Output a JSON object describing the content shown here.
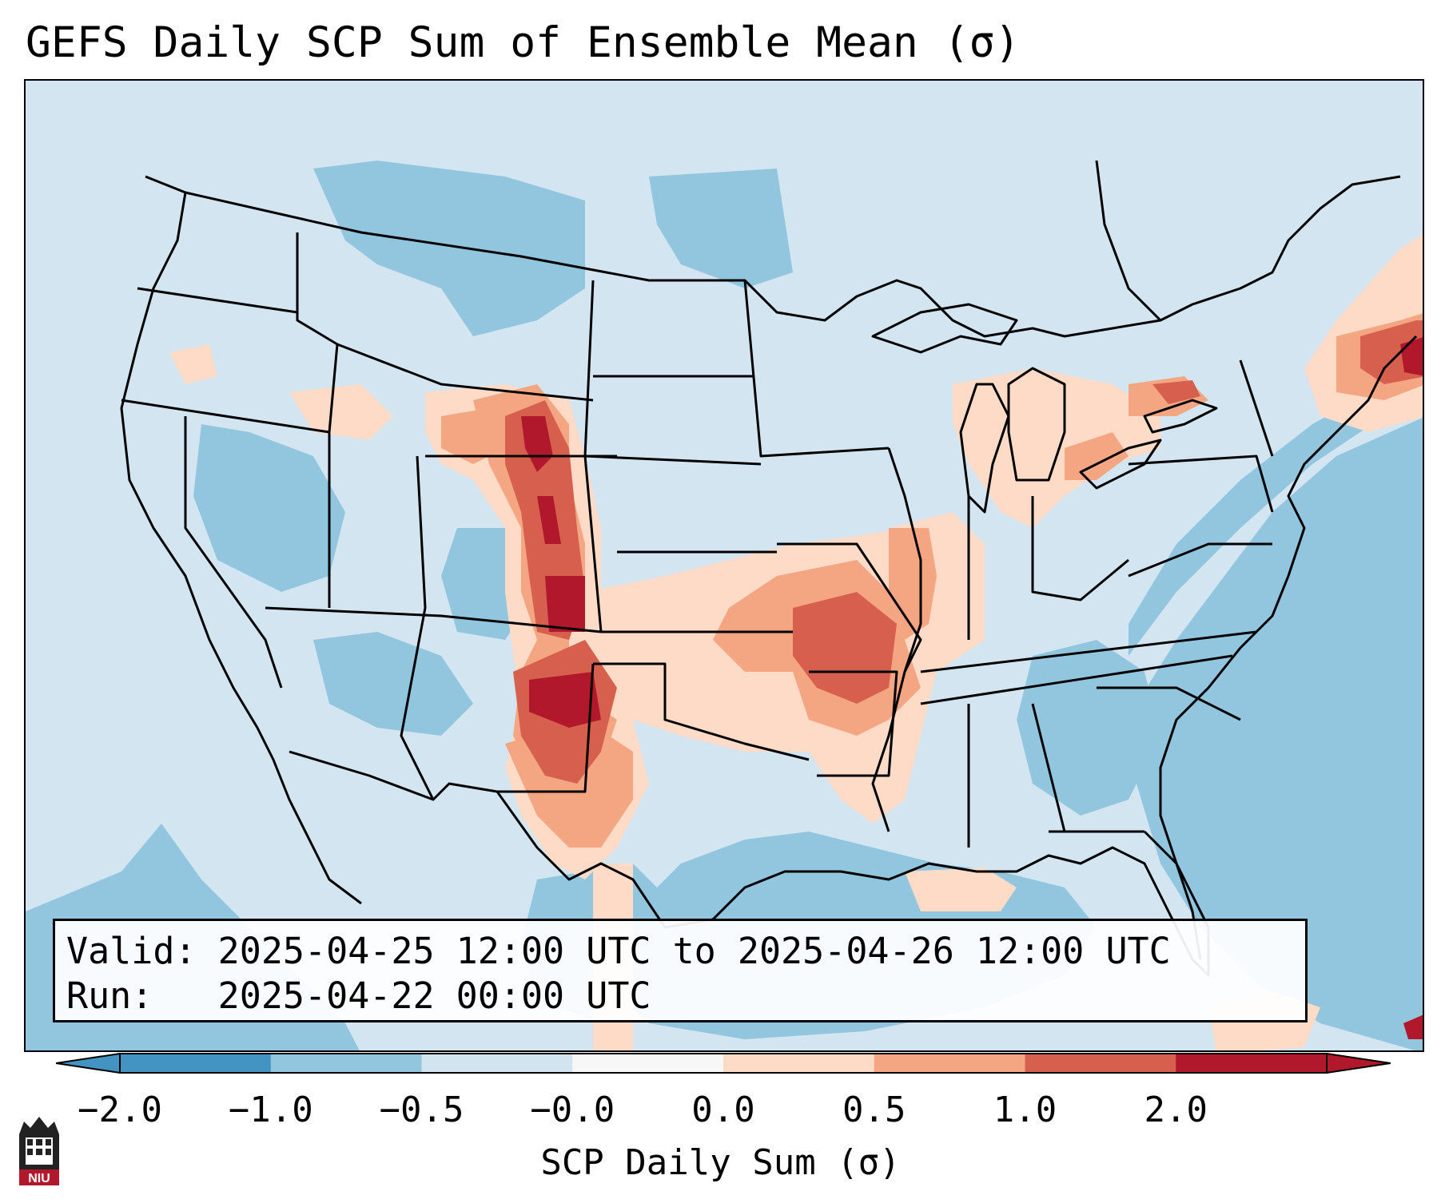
{
  "title": "GEFS Daily SCP Sum of Ensemble Mean (σ)",
  "info": {
    "valid_label": "Valid:",
    "valid_value": "2025-04-25 12:00 UTC to 2025-04-26 12:00 UTC",
    "run_label": "Run:",
    "run_value": "2025-04-22 00:00 UTC"
  },
  "colorbar": {
    "label": "SCP Daily Sum (σ)",
    "ticks": [
      "−2.0",
      "−1.0",
      "−0.5",
      "−0.0",
      "0.0",
      "0.5",
      "1.0",
      "2.0"
    ],
    "colors": [
      "#4393c3",
      "#92c5de",
      "#d1e5f0",
      "#f7f7f7",
      "#fddbc7",
      "#f4a582",
      "#d6604d",
      "#b2182b"
    ],
    "extend": "both"
  },
  "map": {
    "region": "Continental United States",
    "background_color": "#d2e5f0",
    "ocean_color": "#92c5de",
    "positive_anomaly_color": "#d6604d",
    "max_anomaly_color": "#b2182b"
  },
  "logo": {
    "text": "NIU",
    "color": "#b2182b"
  }
}
